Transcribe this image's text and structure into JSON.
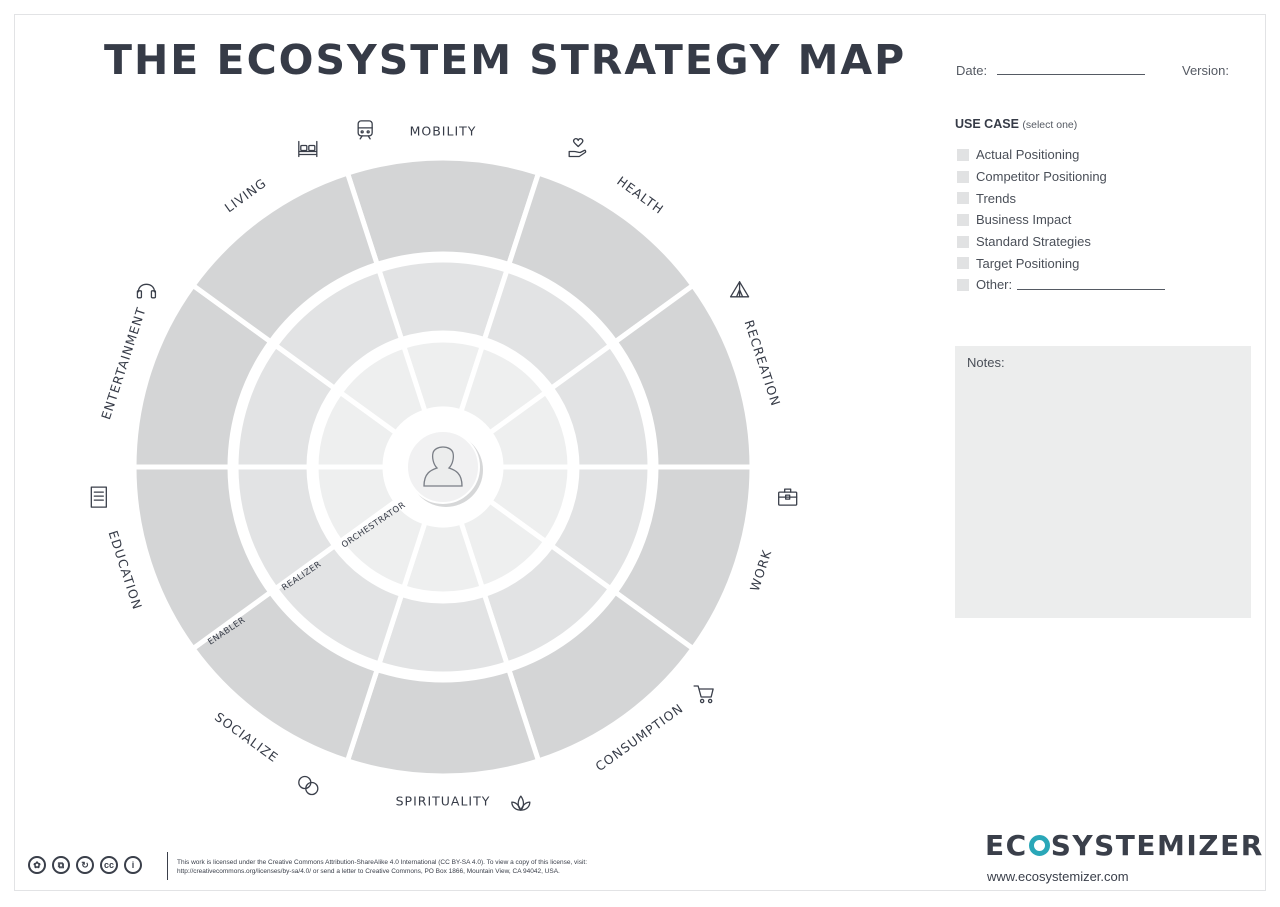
{
  "title": "THE ECOSYSTEM STRATEGY MAP",
  "header": {
    "date_label": "Date:",
    "version_label": "Version:"
  },
  "use_case": {
    "heading": "USE CASE",
    "hint": "(select one)",
    "options": [
      "Actual Positioning",
      "Competitor Positioning",
      "Trends",
      "Business Impact",
      "Standard Strategies",
      "Target Positioning",
      "Other:"
    ]
  },
  "notes_label": "Notes:",
  "segments": [
    {
      "label": "MOBILITY",
      "icon": "train-icon"
    },
    {
      "label": "HEALTH",
      "icon": "heart-hand-icon"
    },
    {
      "label": "RECREATION",
      "icon": "tent-icon"
    },
    {
      "label": "WORK",
      "icon": "briefcase-icon"
    },
    {
      "label": "CONSUMPTION",
      "icon": "cart-icon"
    },
    {
      "label": "SPIRITUALITY",
      "icon": "lotus-icon"
    },
    {
      "label": "SOCIALIZE",
      "icon": "chat-bubbles-icon"
    },
    {
      "label": "EDUCATION",
      "icon": "book-icon"
    },
    {
      "label": "ENTERTAINMENT",
      "icon": "headphones-icon"
    },
    {
      "label": "LIVING",
      "icon": "bed-icon"
    }
  ],
  "rings": {
    "outer": "ENABLER",
    "middle": "REALIZER",
    "inner": "ORCHESTRATOR"
  },
  "center_icon": "person-icon",
  "colors": {
    "outer": "#d4d5d6",
    "middle": "#e2e3e4",
    "inner": "#eeefef",
    "text": "#363b47",
    "brand_accent": "#2aa7b8"
  },
  "brand": {
    "name_pre": "EC",
    "name_post": "SYSTEMIZER",
    "url": "www.ecosystemizer.com"
  },
  "license": {
    "line1": "This work is licensed under the Creative Commons Attribution-ShareAlike 4.0 International (CC BY-SA 4.0). To view a copy of this license, visit:",
    "line2": "http://creativecommons.org/licenses/by-sa/4.0/ or send a letter to Creative Commons, PO Box 1866, Mountain View, CA 94042, USA.",
    "icons": [
      "cc-creative-icon",
      "cc-share-icon",
      "cc-remix-icon",
      "cc-icon",
      "cc-attribution-icon"
    ],
    "icon_glyphs": [
      "✿",
      "⧉",
      "↻",
      "cc",
      "i"
    ]
  }
}
